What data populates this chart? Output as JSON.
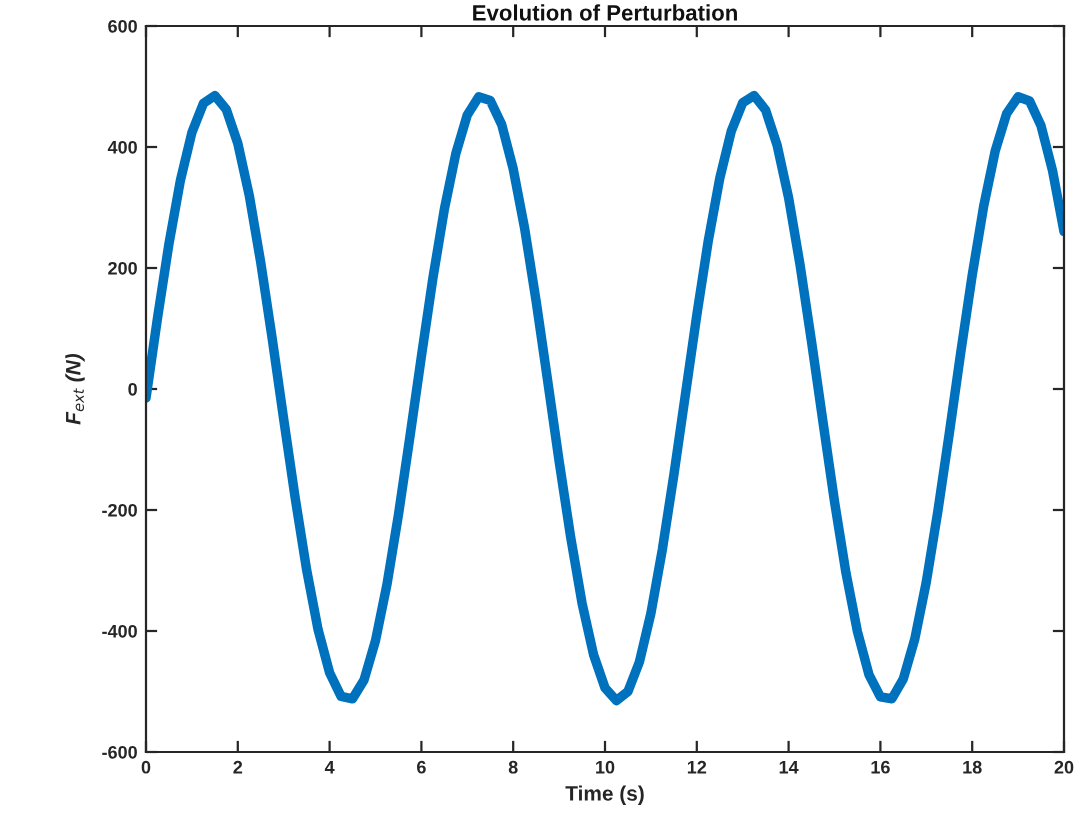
{
  "chart_data": {
    "type": "line",
    "title": "Evolution of Perturbation",
    "xlabel": "Time (s)",
    "ylabel": "F$_{ext}$ (N)",
    "x": [
      0,
      0.25,
      0.5,
      0.75,
      1,
      1.25,
      1.5,
      1.75,
      2,
      2.25,
      2.5,
      2.75,
      3,
      3.25,
      3.5,
      3.75,
      4,
      4.25,
      4.5,
      4.75,
      5,
      5.25,
      5.5,
      5.75,
      6,
      6.25,
      6.5,
      6.75,
      7,
      7.25,
      7.5,
      7.75,
      8,
      8.25,
      8.5,
      8.75,
      9,
      9.25,
      9.5,
      9.75,
      10,
      10.25,
      10.5,
      10.75,
      11,
      11.25,
      11.5,
      11.75,
      12,
      12.25,
      12.5,
      12.75,
      13,
      13.25,
      13.5,
      13.75,
      14,
      14.25,
      14.5,
      14.75,
      15,
      15.25,
      15.5,
      15.75,
      16,
      16.25,
      16.5,
      16.75,
      17,
      17.25,
      17.5,
      17.75,
      18,
      18.25,
      18.5,
      18.75,
      19,
      19.25,
      19.5,
      19.75,
      20
    ],
    "series": [
      {
        "color": "#0072bd",
        "values": [
          -15,
          117,
          240,
          345,
          424,
          472,
          485,
          462,
          406,
          320,
          209,
          83,
          -50,
          -180,
          -299,
          -398,
          -469,
          -508,
          -512,
          -481,
          -416,
          -323,
          -208,
          -79,
          54,
          183,
          297,
          389,
          453,
          483,
          477,
          437,
          364,
          265,
          145,
          14,
          -119,
          -244,
          -354,
          -439,
          -494,
          -515,
          -500,
          -451,
          -371,
          -265,
          -142,
          -10,
          122,
          245,
          348,
          426,
          473,
          485,
          461,
          403,
          316,
          205,
          78,
          -55,
          -186,
          -304,
          -401,
          -472,
          -509,
          -512,
          -479,
          -413,
          -319,
          -203,
          -74,
          60,
          188,
          302,
          393,
          455,
          483,
          476,
          435,
          361,
          260
        ]
      }
    ],
    "xlim": [
      0,
      20
    ],
    "xticks": [
      0,
      2,
      4,
      6,
      8,
      10,
      12,
      14,
      16,
      18,
      20
    ],
    "ylim": [
      -600,
      600
    ],
    "yticks": [
      -600,
      -400,
      -200,
      0,
      200,
      400,
      600
    ],
    "grid": false,
    "marker": "none",
    "line_style": "solid"
  }
}
